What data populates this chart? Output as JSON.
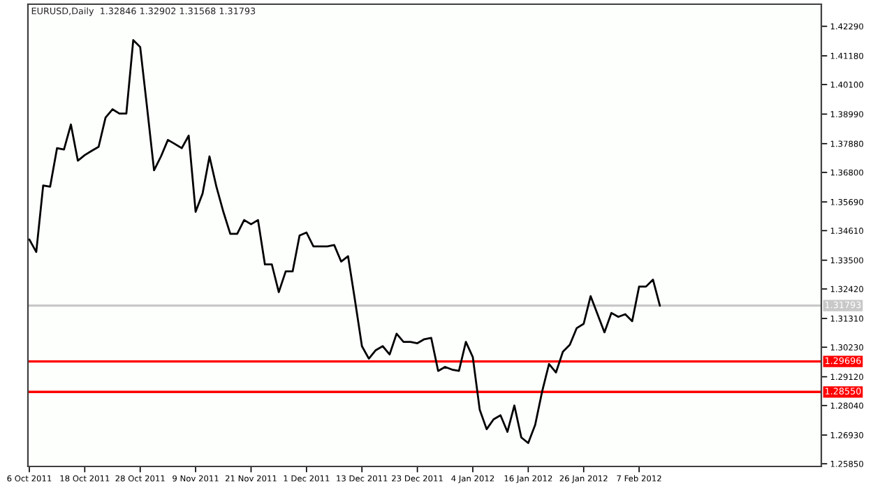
{
  "chart_data": {
    "type": "line",
    "title": "EURUSD,Daily  1.32846 1.32902 1.31568 1.31793",
    "categories": [
      "6 Oct 2011",
      null,
      null,
      null,
      null,
      null,
      null,
      null,
      "18 Oct 2011",
      null,
      null,
      null,
      null,
      null,
      null,
      null,
      "28 Oct 2011",
      null,
      null,
      null,
      null,
      null,
      null,
      null,
      "9 Nov 2011",
      null,
      null,
      null,
      null,
      null,
      null,
      null,
      "21 Nov 2011",
      null,
      null,
      null,
      null,
      null,
      null,
      null,
      "1 Dec 2011",
      null,
      null,
      null,
      null,
      null,
      null,
      null,
      "13 Dec 2011",
      null,
      null,
      null,
      null,
      null,
      null,
      null,
      "23 Dec 2011",
      null,
      null,
      null,
      null,
      null,
      null,
      null,
      "4 Jan 2012",
      null,
      null,
      null,
      null,
      null,
      null,
      null,
      "16 Jan 2012",
      null,
      null,
      null,
      null,
      null,
      null,
      null,
      "26 Jan 2012",
      null,
      null,
      null,
      null,
      null,
      null,
      null,
      "7 Feb 2012",
      null,
      null,
      null
    ],
    "series": [
      {
        "color": "#000000",
        "values": [
          1.3428,
          1.3381,
          1.3631,
          1.3626,
          1.3771,
          1.3766,
          1.386,
          1.3724,
          1.3745,
          1.3761,
          1.3776,
          1.3886,
          1.3917,
          1.3901,
          1.3901,
          1.4177,
          1.4151,
          1.3922,
          1.3688,
          1.374,
          1.3802,
          1.3787,
          1.3771,
          1.3818,
          1.3532,
          1.36,
          1.374,
          1.3626,
          1.3532,
          1.3449,
          1.3449,
          1.3501,
          1.3485,
          1.3501,
          1.3334,
          1.3334,
          1.323,
          1.3308,
          1.3308,
          1.3443,
          1.3454,
          1.3402,
          1.3402,
          1.3402,
          1.3407,
          1.3345,
          1.3365,
          1.3199,
          1.3027,
          1.298,
          1.3012,
          1.3027,
          1.2996,
          1.3074,
          1.3043,
          1.3043,
          1.3038,
          1.3053,
          1.3058,
          1.2934,
          1.2949,
          1.2939,
          1.2934,
          1.3043,
          1.2986,
          1.2788,
          1.2715,
          1.2752,
          1.2767,
          1.2705,
          1.2804,
          1.2684,
          1.2663,
          1.2731,
          1.2856,
          1.296,
          1.2928,
          1.3006,
          1.3032,
          1.3095,
          1.3111,
          1.3215,
          1.3147,
          1.3079,
          1.3152,
          1.3137,
          1.3147,
          1.3121,
          1.3251,
          1.3251,
          1.3277,
          1.3179
        ]
      }
    ],
    "ylim": [
      1.2575,
      1.4312
    ],
    "yticks": [
      {
        "value": 1.4229,
        "label": "1.42290"
      },
      {
        "value": 1.4118,
        "label": "1.41180"
      },
      {
        "value": 1.401,
        "label": "1.40100"
      },
      {
        "value": 1.3899,
        "label": "1.38990"
      },
      {
        "value": 1.3788,
        "label": "1.37880"
      },
      {
        "value": 1.368,
        "label": "1.36800"
      },
      {
        "value": 1.3569,
        "label": "1.35690"
      },
      {
        "value": 1.3461,
        "label": "1.34610"
      },
      {
        "value": 1.335,
        "label": "1.33500"
      },
      {
        "value": 1.3242,
        "label": "1.32420"
      },
      {
        "value": 1.3131,
        "label": "1.31310"
      },
      {
        "value": 1.3023,
        "label": "1.30230"
      },
      {
        "value": 1.2912,
        "label": "1.29120"
      },
      {
        "value": 1.2804,
        "label": "1.28040"
      },
      {
        "value": 1.2693,
        "label": "1.26930"
      },
      {
        "value": 1.2585,
        "label": "1.25850"
      }
    ],
    "ref_lines": [
      {
        "axis": "y",
        "value": 1.31793,
        "label": "1.31793",
        "color": "#c8c8c8"
      },
      {
        "axis": "y",
        "value": 1.29696,
        "label": "1.29696",
        "color": "#ff0000"
      },
      {
        "axis": "y",
        "value": 1.2855,
        "label": "1.28550",
        "color": "#ff0000"
      }
    ],
    "grid": false,
    "legend": false
  }
}
